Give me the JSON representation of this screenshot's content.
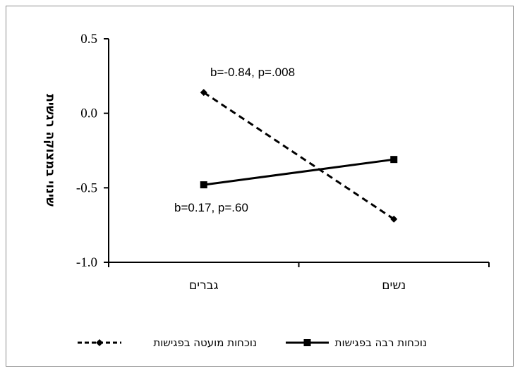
{
  "chart_data": {
    "type": "line",
    "categories": [
      "גברים",
      "נשים"
    ],
    "ylabel": "שינוי במצוקה רגשית",
    "ylim": [
      -1.0,
      0.5
    ],
    "yticks": [
      "0.5",
      "0.0",
      "-0.5",
      "-1.0"
    ],
    "grid": false,
    "legend_position": "bottom",
    "series": [
      {
        "name": "נוכחות מועטה בפגישות",
        "values": [
          0.14,
          -0.71
        ],
        "style": "dashed",
        "marker": "diamond",
        "color": "#000000",
        "annotation": "b=-0.84, p=.008"
      },
      {
        "name": "נוכחות רבה בפגישות",
        "values": [
          -0.48,
          -0.31
        ],
        "style": "solid",
        "marker": "square",
        "color": "#000000",
        "annotation": "b=0.17, p=.60"
      }
    ]
  }
}
